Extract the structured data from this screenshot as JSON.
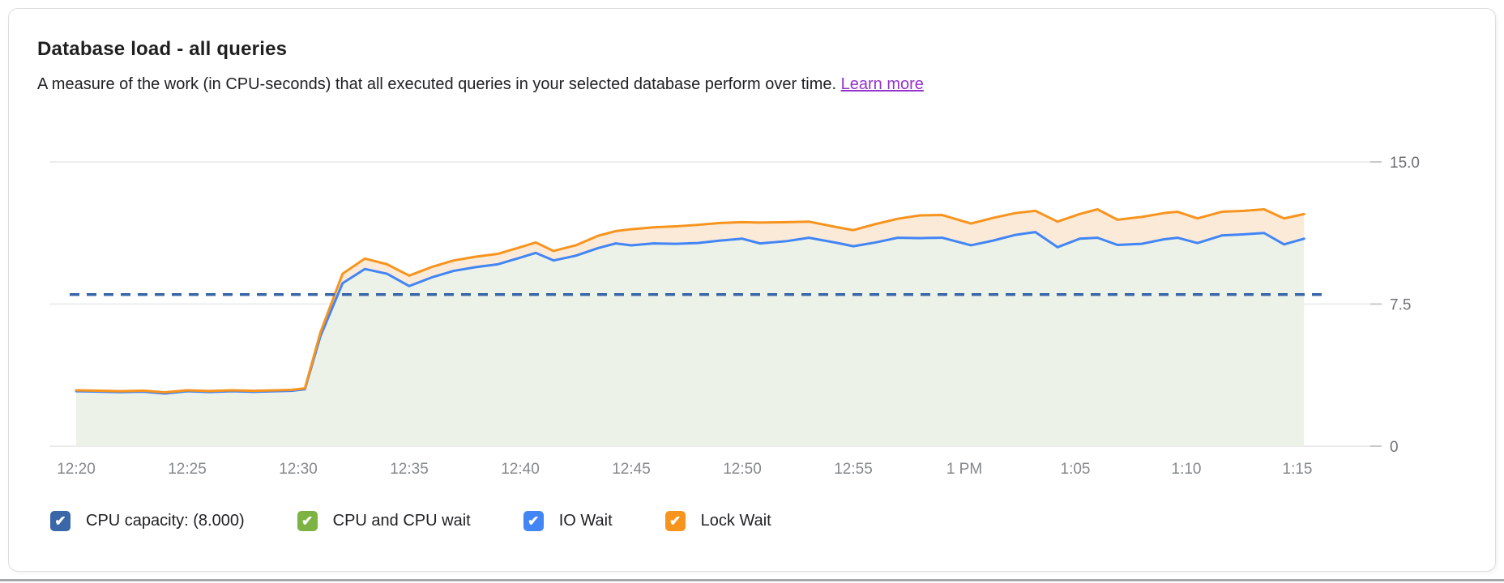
{
  "card": {
    "title": "Database load - all queries",
    "subtitle": "A measure of the work (in CPU-seconds) that all executed queries in your selected database perform over time.",
    "learn_more_label": "Learn more"
  },
  "colors": {
    "link_purple": "#9333CC",
    "capacity_blue": "#3A67A8",
    "cpu_green": "#7CB342",
    "io_wait_blue": "#4285F4",
    "lock_wait_orange": "#F7941E",
    "grid_line": "#ECECEC",
    "axis_tick": "#C9C9C9",
    "x_label_gray": "#85888B",
    "y_label_gray": "#6D7073"
  },
  "legend": {
    "check_glyph": "✔",
    "items": [
      {
        "label": "CPU capacity: (8.000)",
        "color": "#3A67A8",
        "checked": true
      },
      {
        "label": "CPU and CPU wait",
        "color": "#7CB342",
        "checked": true
      },
      {
        "label": "IO Wait",
        "color": "#4285F4",
        "checked": true
      },
      {
        "label": "Lock Wait",
        "color": "#F7941E",
        "checked": true
      }
    ]
  },
  "chart_data": {
    "type": "area",
    "title": "Database load - all queries",
    "grid": "horizontal",
    "legend_position": "bottom",
    "ylim": [
      0,
      15
    ],
    "y_ticks": [
      {
        "v": 0,
        "label": "0"
      },
      {
        "v": 7.5,
        "label": "7.5"
      },
      {
        "v": 15,
        "label": "15.0"
      }
    ],
    "x_ticks": [
      {
        "t": 0,
        "label": "12:20"
      },
      {
        "t": 5,
        "label": "12:25"
      },
      {
        "t": 10,
        "label": "12:30"
      },
      {
        "t": 15,
        "label": "12:35"
      },
      {
        "t": 20,
        "label": "12:40"
      },
      {
        "t": 25,
        "label": "12:45"
      },
      {
        "t": 30,
        "label": "12:50"
      },
      {
        "t": 35,
        "label": "12:55"
      },
      {
        "t": 40,
        "label": "1 PM"
      },
      {
        "t": 45,
        "label": "1:05"
      },
      {
        "t": 50,
        "label": "1:10"
      },
      {
        "t": 55,
        "label": "1:15"
      }
    ],
    "capacity_line": {
      "label": "CPU capacity",
      "value": 8.0,
      "color": "#3A67A8",
      "style": "dashed"
    },
    "t_minutes": [
      0,
      1,
      2,
      3,
      4,
      5,
      6,
      7,
      8,
      9,
      9.7,
      10.3,
      11,
      12,
      13,
      14,
      15,
      16,
      17,
      18,
      19,
      20,
      20.7,
      21.5,
      22.5,
      23.5,
      24.3,
      25,
      26,
      27,
      28,
      29,
      30,
      30.8,
      32,
      33,
      34.3,
      35,
      36,
      37,
      38,
      39,
      40.3,
      41.3,
      42.3,
      43.2,
      44.2,
      45.2,
      46,
      46.9,
      48,
      49,
      49.6,
      50.5,
      51.6,
      52.6,
      53.5,
      54.4,
      55.3
    ],
    "series": [
      {
        "name": "IO Wait (stacked top of CPU and CPU wait + IO Wait)",
        "line_color": "#4285F4",
        "area_color": "#EDF2E8",
        "values": [
          2.9,
          2.88,
          2.85,
          2.88,
          2.78,
          2.9,
          2.86,
          2.9,
          2.87,
          2.9,
          2.92,
          3.0,
          5.8,
          8.6,
          9.35,
          9.1,
          8.45,
          8.9,
          9.25,
          9.45,
          9.6,
          9.95,
          10.2,
          9.8,
          10.05,
          10.45,
          10.7,
          10.6,
          10.7,
          10.68,
          10.72,
          10.85,
          10.95,
          10.7,
          10.82,
          11.0,
          10.72,
          10.55,
          10.75,
          11.0,
          10.98,
          11.0,
          10.6,
          10.85,
          11.15,
          11.3,
          10.5,
          10.95,
          11.0,
          10.62,
          10.68,
          10.92,
          11.0,
          10.72,
          11.12,
          11.18,
          11.25,
          10.65,
          10.95
        ]
      },
      {
        "name": "Lock Wait (stacked total load)",
        "line_color": "#F7941E",
        "area_color": "#FCEAD9",
        "values": [
          2.95,
          2.93,
          2.9,
          2.93,
          2.84,
          2.95,
          2.91,
          2.95,
          2.92,
          2.95,
          2.97,
          3.05,
          6.0,
          9.1,
          9.9,
          9.6,
          9.0,
          9.45,
          9.8,
          10.0,
          10.15,
          10.5,
          10.75,
          10.3,
          10.6,
          11.1,
          11.35,
          11.45,
          11.55,
          11.6,
          11.68,
          11.78,
          11.82,
          11.8,
          11.82,
          11.85,
          11.55,
          11.4,
          11.72,
          12.0,
          12.18,
          12.2,
          11.75,
          12.05,
          12.3,
          12.42,
          11.85,
          12.25,
          12.5,
          11.95,
          12.1,
          12.3,
          12.37,
          12.02,
          12.37,
          12.42,
          12.5,
          12.02,
          12.25
        ]
      }
    ]
  }
}
